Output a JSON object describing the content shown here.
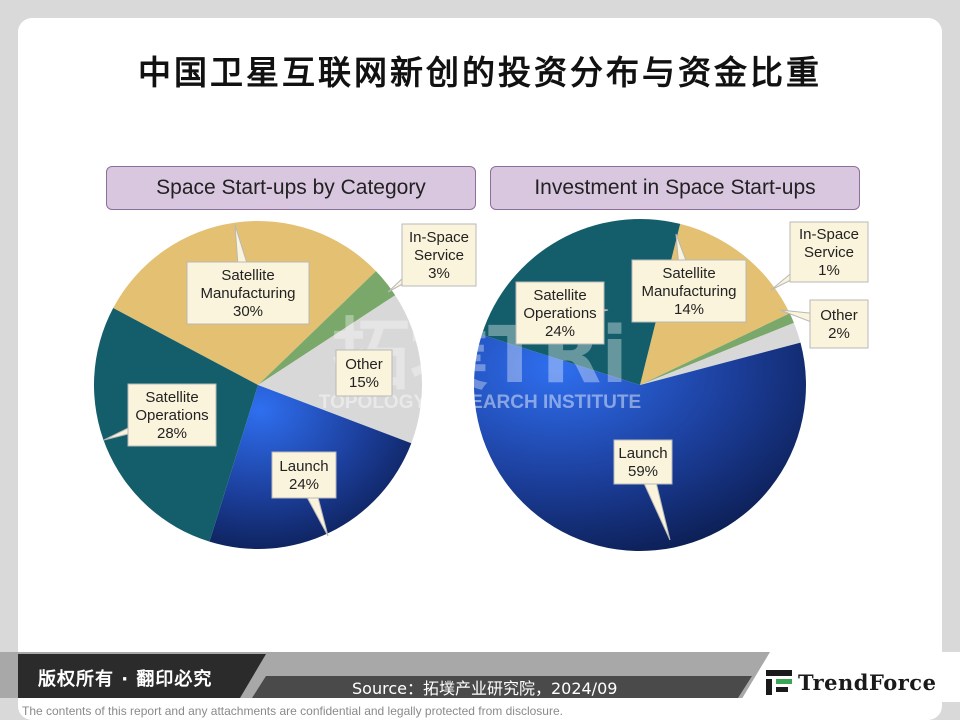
{
  "page": {
    "title": "中国卫星互联网新创的投资分布与资金比重",
    "watermark": {
      "big": "拓墣TRi",
      "sub": "TOPOLOGY RESEARCH INSTITUTE"
    },
    "footer": {
      "rights": "版权所有 · 翻印必究",
      "source": "Source：拓墣产业研究院，2024/09",
      "logo": "TrendForce",
      "disclaimer": "The contents of this report and any attachments are confidential and legally protected from disclosure."
    }
  },
  "chart_data": [
    {
      "type": "pie",
      "title": "Space Start-ups by Category",
      "slices": [
        {
          "label": [
            "Satellite",
            "Manufacturing"
          ],
          "pct_text": "30%",
          "value": 30,
          "color": "#e3c072"
        },
        {
          "label": [
            "In-Space",
            "Service"
          ],
          "pct_text": "3%",
          "value": 3,
          "color": "#7aa86b"
        },
        {
          "label": [
            "Other"
          ],
          "pct_text": "15%",
          "value": 15,
          "color": "#d8d8d8"
        },
        {
          "label": [
            "Launch"
          ],
          "pct_text": "24%",
          "value": 24,
          "color": "#1f46a6"
        },
        {
          "label": [
            "Satellite",
            "Operations"
          ],
          "pct_text": "28%",
          "value": 28,
          "color": "#145e6b"
        }
      ]
    },
    {
      "type": "pie",
      "title": "Investment in Space Start-ups",
      "slices": [
        {
          "label": [
            "Satellite",
            "Manufacturing"
          ],
          "pct_text": "14%",
          "value": 14,
          "color": "#e3c072"
        },
        {
          "label": [
            "In-Space",
            "Service"
          ],
          "pct_text": "1%",
          "value": 1,
          "color": "#7aa86b"
        },
        {
          "label": [
            "Other"
          ],
          "pct_text": "2%",
          "value": 2,
          "color": "#d8d8d8"
        },
        {
          "label": [
            "Launch"
          ],
          "pct_text": "59%",
          "value": 59,
          "color": "#1f46a6"
        },
        {
          "label": [
            "Satellite",
            "Operations"
          ],
          "pct_text": "24%",
          "value": 24,
          "color": "#145e6b"
        }
      ]
    }
  ]
}
